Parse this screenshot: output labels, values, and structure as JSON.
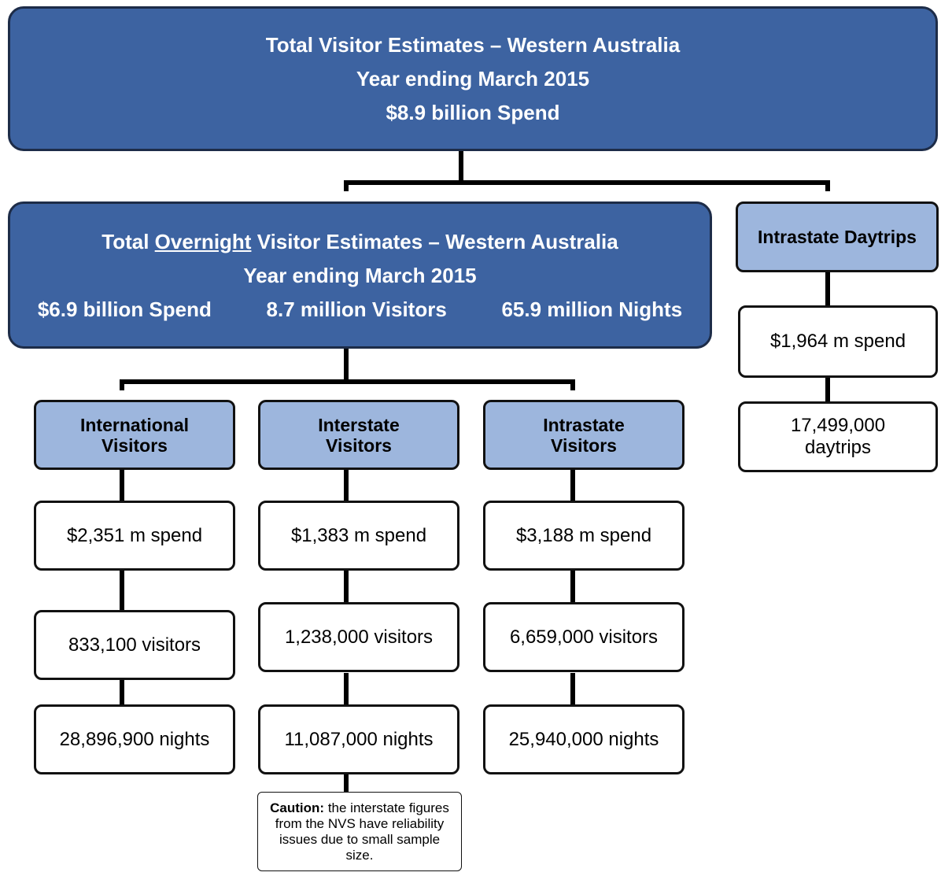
{
  "top": {
    "lines": [
      "Total Visitor Estimates – Western Australia",
      "Year ending March 2015",
      "$8.9 billion Spend"
    ]
  },
  "overnight": {
    "title": {
      "before": "Total",
      "underlined": "Overnight",
      "after": "Visitor Estimates – Western Australia"
    },
    "period": "Year ending March 2015",
    "stats": [
      "$6.9 billion Spend",
      "8.7 million Visitors",
      "65.9 million Nights"
    ]
  },
  "columns": [
    {
      "title": "International Visitors",
      "boxes": [
        "$2,351 m spend",
        "833,100 visitors",
        "28,896,900 nights"
      ]
    },
    {
      "title": "Interstate Visitors",
      "boxes": [
        "$1,383 m spend",
        "1,238,000 visitors",
        "11,087,000 nights"
      ]
    },
    {
      "title": "Intrastate Visitors",
      "boxes": [
        "$3,188 m spend",
        "6,659,000 visitors",
        "25,940,000 nights"
      ]
    }
  ],
  "daytrips": {
    "title": "Intrastate Daytrips",
    "boxes": [
      "$1,964 m spend",
      "17,499,000 daytrips"
    ]
  },
  "caution": {
    "label": "Caution:",
    "text": "the interstate figures from the NVS have reliability issues due to small sample size."
  }
}
